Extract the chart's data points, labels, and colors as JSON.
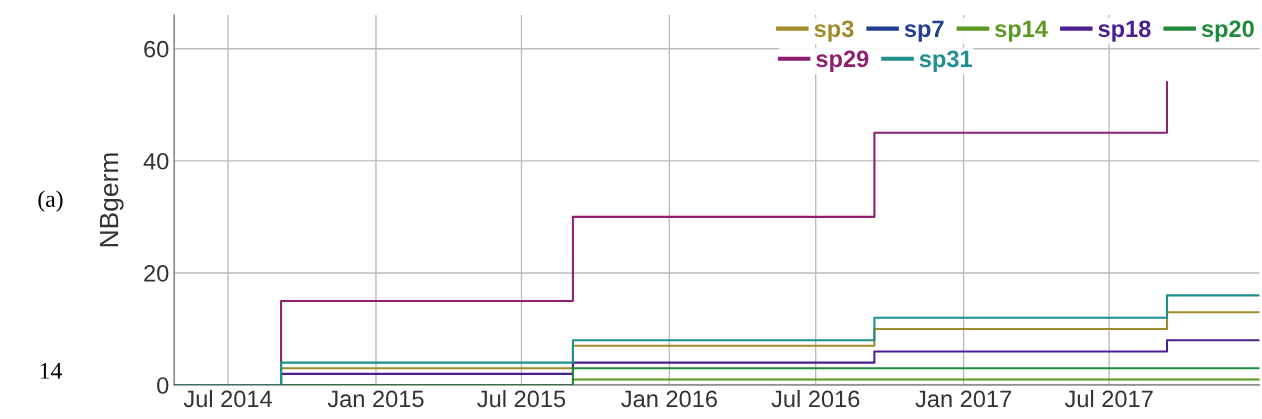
{
  "chart_data": {
    "type": "step",
    "ylabel": "NBgerm",
    "annotations": [
      "(a)",
      "14"
    ],
    "x": [
      "2014-04-25",
      "2014-09-05",
      "2015-09-03",
      "2016-09-12",
      "2017-09-11",
      "2018-01-04"
    ],
    "series": [
      {
        "name": "sp3",
        "color": "#a08a2a",
        "values": [
          0,
          3,
          7,
          10,
          13,
          13
        ]
      },
      {
        "name": "sp7",
        "color": "#1f3f8f",
        "values": [
          null,
          null,
          null,
          null,
          null,
          null
        ]
      },
      {
        "name": "sp14",
        "color": "#5a9a1f",
        "values": [
          0,
          0,
          1,
          1,
          1,
          1
        ]
      },
      {
        "name": "sp18",
        "color": "#4b1f8f",
        "values": [
          0,
          2,
          4,
          6,
          8,
          8
        ]
      },
      {
        "name": "sp20",
        "color": "#1f8a3a",
        "values": [
          0,
          0,
          3,
          3,
          3,
          3
        ]
      },
      {
        "name": "sp29",
        "color": "#8f1f6f",
        "x": [
          "2014-04-25",
          "2014-09-05",
          "2015-09-03",
          "2016-09-12",
          "2017-09-11"
        ],
        "values": [
          0,
          15,
          30,
          45,
          54
        ]
      },
      {
        "name": "sp31",
        "color": "#1f8f8f",
        "values": [
          0,
          4,
          8,
          12,
          16,
          16
        ]
      }
    ],
    "xlim": [
      "2014-04-25",
      "2018-01-04"
    ],
    "xticks": [
      {
        "value": "2014-07-01",
        "label": "Jul 2014"
      },
      {
        "value": "2015-01-01",
        "label": "Jan 2015"
      },
      {
        "value": "2015-07-01",
        "label": "Jul 2015"
      },
      {
        "value": "2016-01-01",
        "label": "Jan 2016"
      },
      {
        "value": "2016-07-01",
        "label": "Jul 2016"
      },
      {
        "value": "2017-01-01",
        "label": "Jan 2017"
      },
      {
        "value": "2017-07-01",
        "label": "Jul 2017"
      }
    ],
    "ylim": [
      0,
      66
    ],
    "yticks": [
      0,
      20,
      40,
      60
    ],
    "grid": true,
    "legend": "top right"
  }
}
